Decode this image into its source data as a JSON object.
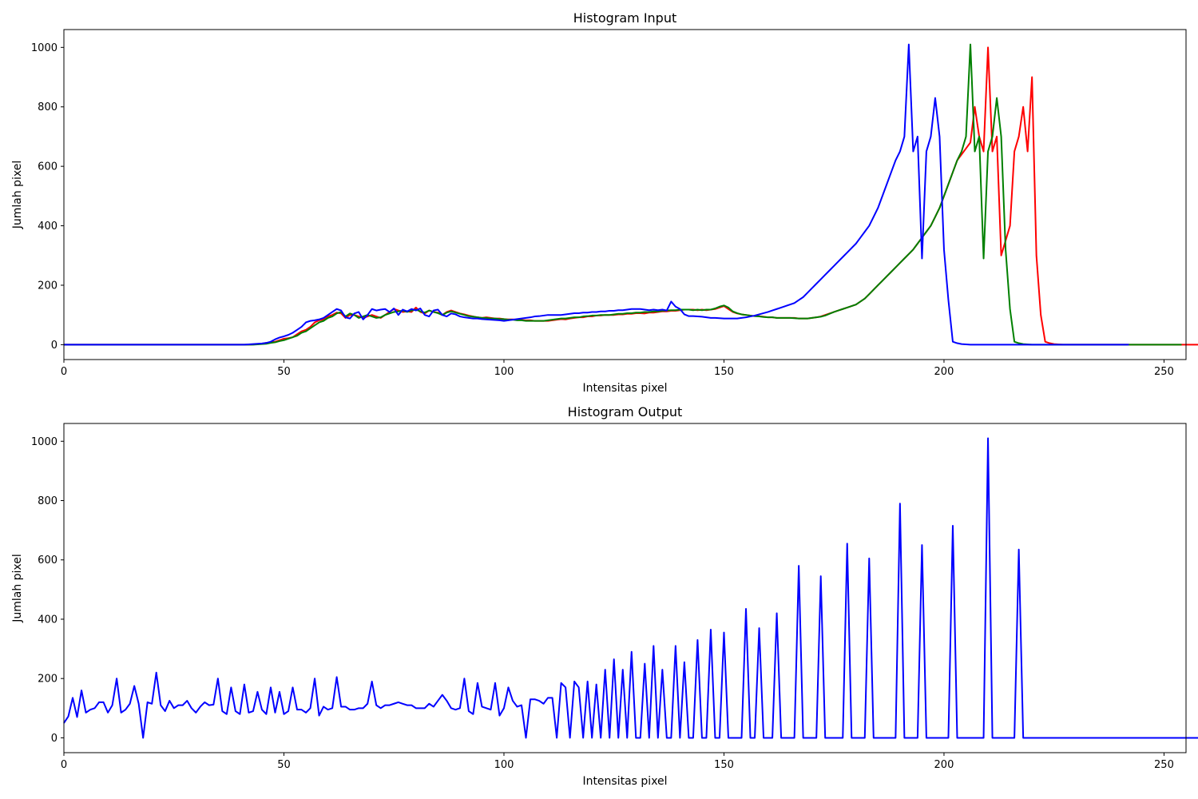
{
  "chart_data": [
    {
      "type": "line",
      "title": "Histogram Input",
      "xlabel": "Intensitas pixel",
      "ylabel": "Jumlah pixel",
      "xlim": [
        0,
        255
      ],
      "ylim": [
        -50,
        1060
      ],
      "xticks": [
        0,
        50,
        100,
        150,
        200,
        250
      ],
      "yticks": [
        0,
        200,
        400,
        600,
        800,
        1000
      ],
      "grid": false,
      "series": [
        {
          "color": "#ff0000",
          "values": [
            0,
            0,
            0,
            0,
            0,
            0,
            0,
            0,
            0,
            0,
            0,
            0,
            0,
            0,
            0,
            0,
            0,
            0,
            0,
            0,
            0,
            0,
            0,
            0,
            0,
            0,
            0,
            0,
            0,
            0,
            0,
            0,
            0,
            0,
            0,
            0,
            0,
            0,
            0,
            0,
            0,
            0,
            0,
            1,
            2,
            3,
            6,
            8,
            10,
            15,
            20,
            22,
            25,
            35,
            45,
            50,
            60,
            75,
            82,
            85,
            95,
            100,
            108,
            105,
            90,
            100,
            100,
            95,
            90,
            95,
            100,
            95,
            90,
            100,
            110,
            120,
            115,
            110,
            112,
            110,
            125,
            110,
            105,
            115,
            110,
            108,
            100,
            110,
            115,
            110,
            105,
            102,
            98,
            95,
            92,
            90,
            92,
            90,
            88,
            88,
            86,
            85,
            85,
            84,
            83,
            82,
            82,
            80,
            80,
            80,
            80,
            82,
            84,
            86,
            85,
            88,
            90,
            92,
            92,
            95,
            95,
            98,
            98,
            100,
            100,
            100,
            102,
            102,
            104,
            104,
            106,
            106,
            105,
            108,
            108,
            110,
            112,
            112,
            114,
            114,
            116,
            118,
            118,
            118,
            116,
            118,
            116,
            118,
            120,
            125,
            130,
            120,
            110,
            105,
            102,
            100,
            98,
            96,
            96,
            94,
            92,
            92,
            90,
            90,
            90,
            90,
            90,
            88,
            88,
            88,
            90,
            92,
            95,
            100,
            105,
            110,
            115,
            120,
            125,
            130,
            135,
            145,
            155,
            170,
            185,
            200,
            215,
            230,
            245,
            260,
            275,
            290,
            305,
            320,
            340,
            360,
            380,
            400,
            430,
            460,
            500,
            540,
            580,
            620,
            640,
            660,
            680,
            800,
            700,
            650,
            1000,
            650,
            700,
            300,
            350,
            400,
            650,
            700,
            800,
            650,
            900,
            300,
            100,
            10,
            5,
            2,
            1,
            0,
            0,
            0,
            0,
            0,
            0,
            0,
            0,
            0,
            0,
            0,
            0,
            0,
            0,
            0,
            0,
            0,
            0,
            0,
            0,
            0,
            0,
            0,
            0,
            0,
            0,
            0,
            0,
            0,
            0,
            0,
            0,
            0,
            0
          ]
        },
        {
          "color": "#008000",
          "values": [
            0,
            0,
            0,
            0,
            0,
            0,
            0,
            0,
            0,
            0,
            0,
            0,
            0,
            0,
            0,
            0,
            0,
            0,
            0,
            0,
            0,
            0,
            0,
            0,
            0,
            0,
            0,
            0,
            0,
            0,
            0,
            0,
            0,
            0,
            0,
            0,
            0,
            0,
            0,
            0,
            0,
            0,
            0,
            0,
            1,
            2,
            3,
            6,
            8,
            12,
            15,
            20,
            25,
            30,
            40,
            45,
            55,
            65,
            75,
            80,
            90,
            95,
            105,
            110,
            95,
            105,
            100,
            90,
            95,
            100,
            95,
            90,
            92,
            100,
            105,
            110,
            112,
            115,
            110,
            115,
            118,
            112,
            108,
            115,
            110,
            106,
            100,
            108,
            112,
            108,
            104,
            100,
            96,
            94,
            92,
            90,
            90,
            88,
            88,
            86,
            86,
            84,
            84,
            82,
            82,
            80,
            80,
            80,
            80,
            80,
            82,
            84,
            86,
            88,
            88,
            90,
            92,
            92,
            95,
            96,
            98,
            98,
            100,
            100,
            100,
            102,
            104,
            104,
            106,
            106,
            108,
            108,
            110,
            110,
            112,
            112,
            114,
            115,
            116,
            116,
            118,
            118,
            118,
            116,
            118,
            116,
            118,
            118,
            122,
            128,
            132,
            125,
            112,
            106,
            102,
            100,
            98,
            96,
            95,
            93,
            92,
            92,
            90,
            90,
            90,
            90,
            89,
            88,
            88,
            88,
            90,
            92,
            94,
            98,
            104,
            110,
            115,
            120,
            125,
            130,
            135,
            145,
            155,
            170,
            185,
            200,
            215,
            230,
            245,
            260,
            275,
            290,
            305,
            320,
            340,
            360,
            380,
            400,
            430,
            460,
            500,
            540,
            580,
            620,
            650,
            700,
            1010,
            650,
            700,
            290,
            650,
            700,
            830,
            700,
            320,
            120,
            10,
            5,
            2,
            1,
            0,
            0,
            0,
            0,
            0,
            0,
            0,
            0,
            0,
            0,
            0,
            0,
            0,
            0,
            0,
            0,
            0,
            0,
            0,
            0,
            0,
            0,
            0,
            0,
            0,
            0,
            0,
            0,
            0,
            0,
            0,
            0,
            0,
            0,
            0
          ]
        },
        {
          "color": "#0000ff",
          "values": [
            0,
            0,
            0,
            0,
            0,
            0,
            0,
            0,
            0,
            0,
            0,
            0,
            0,
            0,
            0,
            0,
            0,
            0,
            0,
            0,
            0,
            0,
            0,
            0,
            0,
            0,
            0,
            0,
            0,
            0,
            0,
            0,
            0,
            0,
            0,
            0,
            0,
            0,
            0,
            0,
            0,
            0,
            1,
            2,
            3,
            4,
            6,
            10,
            18,
            24,
            28,
            33,
            40,
            50,
            60,
            75,
            80,
            82,
            85,
            90,
            100,
            110,
            120,
            115,
            92,
            88,
            105,
            110,
            85,
            100,
            120,
            115,
            118,
            120,
            110,
            122,
            100,
            118,
            112,
            120,
            115,
            122,
            100,
            95,
            115,
            118,
            100,
            95,
            105,
            102,
            95,
            92,
            90,
            88,
            88,
            86,
            85,
            84,
            83,
            82,
            80,
            82,
            84,
            86,
            88,
            90,
            92,
            95,
            96,
            98,
            100,
            100,
            100,
            100,
            102,
            104,
            106,
            106,
            108,
            108,
            110,
            110,
            112,
            112,
            114,
            114,
            116,
            116,
            118,
            120,
            120,
            120,
            118,
            116,
            118,
            116,
            118,
            115,
            145,
            128,
            120,
            102,
            96,
            96,
            95,
            94,
            92,
            90,
            90,
            89,
            88,
            88,
            88,
            88,
            90,
            92,
            95,
            98,
            102,
            106,
            110,
            115,
            120,
            125,
            130,
            135,
            140,
            150,
            160,
            175,
            190,
            205,
            220,
            235,
            250,
            265,
            280,
            295,
            310,
            325,
            340,
            360,
            380,
            400,
            430,
            460,
            500,
            540,
            580,
            620,
            650,
            700,
            1010,
            650,
            700,
            290,
            650,
            700,
            830,
            700,
            320,
            150,
            10,
            5,
            2,
            1,
            0,
            0,
            0,
            0,
            0,
            0,
            0,
            0,
            0,
            0,
            0,
            0,
            0,
            0,
            0,
            0,
            0,
            0,
            0,
            0,
            0,
            0,
            0,
            0,
            0,
            0,
            0,
            0,
            0,
            0,
            0,
            0,
            0,
            0,
            0,
            0,
            0
          ]
        }
      ]
    },
    {
      "type": "line",
      "title": "Histogram Output",
      "xlabel": "Intensitas pixel",
      "ylabel": "Jumlah pixel",
      "xlim": [
        0,
        255
      ],
      "ylim": [
        -50,
        1060
      ],
      "xticks": [
        0,
        50,
        100,
        150,
        200,
        250
      ],
      "yticks": [
        0,
        200,
        400,
        600,
        800,
        1000
      ],
      "grid": false,
      "series": [
        {
          "color": "#0000ff",
          "values": [
            50,
            72,
            135,
            70,
            160,
            85,
            95,
            100,
            120,
            120,
            85,
            110,
            200,
            85,
            95,
            115,
            175,
            115,
            0,
            120,
            115,
            220,
            110,
            90,
            125,
            100,
            110,
            110,
            125,
            100,
            85,
            105,
            120,
            110,
            112,
            200,
            90,
            80,
            170,
            90,
            80,
            180,
            85,
            90,
            155,
            95,
            80,
            170,
            85,
            155,
            80,
            90,
            170,
            95,
            95,
            85,
            100,
            200,
            75,
            105,
            95,
            100,
            205,
            105,
            105,
            95,
            95,
            100,
            100,
            115,
            190,
            110,
            100,
            110,
            110,
            115,
            120,
            115,
            110,
            110,
            100,
            100,
            100,
            115,
            105,
            125,
            145,
            125,
            100,
            95,
            100,
            200,
            90,
            80,
            185,
            105,
            100,
            95,
            185,
            75,
            100,
            170,
            125,
            105,
            110,
            0,
            130,
            130,
            125,
            115,
            135,
            135,
            0,
            185,
            170,
            0,
            190,
            170,
            0,
            190,
            0,
            180,
            0,
            230,
            0,
            265,
            0,
            230,
            0,
            290,
            0,
            0,
            250,
            0,
            310,
            0,
            230,
            0,
            0,
            310,
            0,
            255,
            0,
            0,
            330,
            0,
            0,
            365,
            0,
            0,
            355,
            0,
            0,
            0,
            0,
            435,
            0,
            0,
            370,
            0,
            0,
            0,
            420,
            0,
            0,
            0,
            0,
            580,
            0,
            0,
            0,
            0,
            545,
            0,
            0,
            0,
            0,
            0,
            655,
            0,
            0,
            0,
            0,
            605,
            0,
            0,
            0,
            0,
            0,
            0,
            790,
            0,
            0,
            0,
            0,
            650,
            0,
            0,
            0,
            0,
            0,
            0,
            715,
            0,
            0,
            0,
            0,
            0,
            0,
            0,
            1010,
            0,
            0,
            0,
            0,
            0,
            0,
            635,
            0,
            0,
            0,
            0,
            0,
            0,
            0,
            0,
            0,
            0,
            0,
            0,
            0,
            0,
            0,
            0,
            0,
            0,
            0,
            0,
            0,
            0,
            0,
            0,
            0,
            0,
            0,
            0,
            0,
            0,
            0,
            0,
            0,
            0,
            0,
            0,
            0,
            0,
            0,
            0,
            0,
            0,
            0,
            0,
            0,
            0,
            0,
            0,
            0,
            0,
            0
          ]
        }
      ]
    }
  ]
}
